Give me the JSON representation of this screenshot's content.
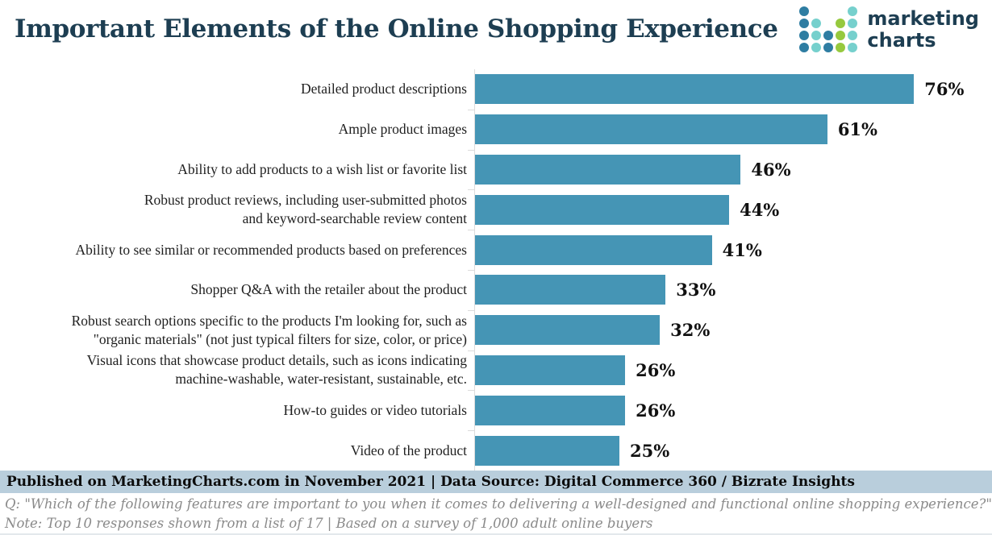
{
  "title": "Important Elements of the Online Shopping Experience",
  "logo": {
    "text_line1": "marketing",
    "text_line2": "charts",
    "dot_grid": [
      "D...T",
      "DT.GT",
      "DTDGT",
      "DTDGT"
    ],
    "dot_colors": {
      "D": "#2e7da2",
      "T": "#76d0cd",
      "G": "#96c93e"
    }
  },
  "chart_data": {
    "type": "bar",
    "orientation": "horizontal",
    "title": "Important Elements of the Online Shopping Experience",
    "categories": [
      "Detailed product descriptions",
      "Ample product images",
      "Ability to add products to a wish list or favorite list",
      "Robust product reviews, including user-submitted photos and keyword-searchable review content",
      "Ability to see similar or recommended products based on preferences",
      "Shopper Q&A with the retailer about the product",
      "Robust search options specific to the products I'm looking for, such as \"organic materials\" (not just typical filters for size, color, or price)",
      "Visual icons that showcase product details, such as icons indicating machine-washable, water-resistant, sustainable, etc.",
      "How-to guides or video tutorials",
      "Video of the product"
    ],
    "category_display_lines": [
      [
        "Detailed product descriptions"
      ],
      [
        "Ample product images"
      ],
      [
        "Ability to add products to a wish list or favorite list"
      ],
      [
        "Robust product reviews, including user-submitted photos",
        "and keyword-searchable review content"
      ],
      [
        "Ability to see similar or recommended products based on preferences"
      ],
      [
        "Shopper Q&A with the retailer about the product"
      ],
      [
        "Robust search options specific to the products I'm looking for, such as",
        "\"organic materials\" (not just typical filters for size, color, or price)"
      ],
      [
        "Visual icons that showcase product details, such as icons indicating",
        "machine-washable, water-resistant, sustainable, etc."
      ],
      [
        "How-to guides or video tutorials"
      ],
      [
        "Video of the product"
      ]
    ],
    "values": [
      76,
      61,
      46,
      44,
      41,
      33,
      32,
      26,
      26,
      25
    ],
    "unit": "%",
    "xlim": [
      0,
      87
    ],
    "grid": false,
    "legend": false,
    "bar_color": "#4595b5"
  },
  "footer": {
    "published": "Published on MarketingCharts.com in November 2021 | Data Source: Digital Commerce 360 / Bizrate Insights",
    "question": "Q: \"Which of the following features are important to you when it comes to delivering a well-designed and functional online shopping experience?\"",
    "note": "Note: Top 10 responses shown from a list of 17 | Based on a survey of 1,000 adult online buyers"
  },
  "colors": {
    "title_text": "#1d3e52",
    "bar": "#4595b5",
    "published_band_bg": "#b9cedc",
    "note_text": "#8a8a8a",
    "label_text": "#1f1f1f",
    "axis_line": "#dcdcdc"
  }
}
